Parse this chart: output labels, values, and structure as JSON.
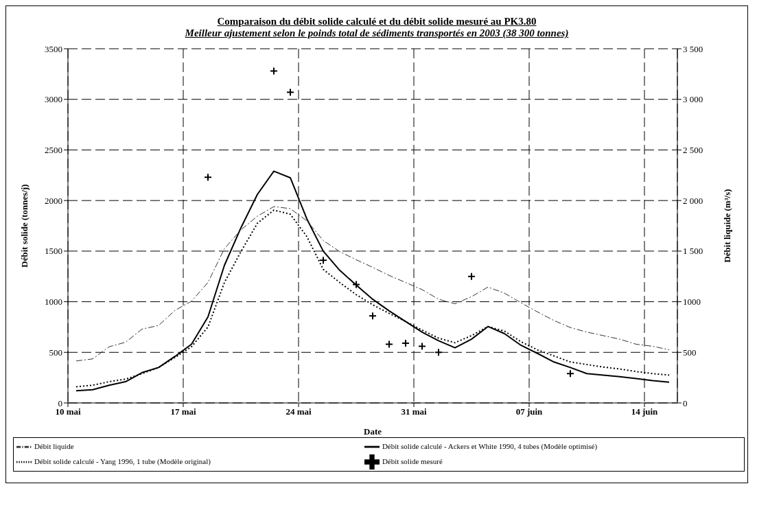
{
  "chart_data": {
    "type": "line",
    "title": "Comparaison du débit solide calculé et du débit solide mesuré au PK3.80",
    "subtitle": "Meilleur ajustement selon le poinds total de sédiments transportés en 2003 (38 300 tonnes)",
    "xlabel": "Date",
    "ylabel": "Débit solide (tonnes/j)",
    "y2label": "Débit liquide (m³/s)",
    "x": [
      "2003-05-10T12:00",
      "2003-05-11T12:00",
      "2003-05-12T12:00",
      "2003-05-13T12:00",
      "2003-05-14T12:00",
      "2003-05-15T12:00",
      "2003-05-16T12:00",
      "2003-05-17T12:00",
      "2003-05-18T12:00",
      "2003-05-19T12:00",
      "2003-05-20T12:00",
      "2003-05-21T12:00",
      "2003-05-22T12:00",
      "2003-05-23T12:00",
      "2003-05-24T12:00",
      "2003-05-25T12:00",
      "2003-05-26T12:00",
      "2003-05-27T12:00",
      "2003-05-28T12:00",
      "2003-05-29T12:00",
      "2003-05-30T12:00",
      "2003-05-31T12:00",
      "2003-06-01T12:00",
      "2003-06-02T12:00",
      "2003-06-03T12:00",
      "2003-06-04T12:00",
      "2003-06-05T12:00",
      "2003-06-06T12:00",
      "2003-06-07T12:00",
      "2003-06-08T12:00",
      "2003-06-09T12:00",
      "2003-06-10T12:00",
      "2003-06-11T12:00",
      "2003-06-12T12:00",
      "2003-06-13T12:00",
      "2003-06-14T12:00",
      "2003-06-15T12:00"
    ],
    "series": [
      {
        "name": "Débit solide mesuré",
        "type": "scatter",
        "marker": "cross",
        "color": "#000000",
        "x": [
          "2003-05-18T12:00",
          "2003-05-22T12:00",
          "2003-05-23T12:00",
          "2003-05-25T12:00",
          "2003-05-27T12:00",
          "2003-05-28T12:00",
          "2003-05-29T12:00",
          "2003-05-30T12:00",
          "2003-05-31T12:00",
          "2003-06-01T12:00",
          "2003-06-03T12:00",
          "2003-06-09T12:00"
        ],
        "values": [
          2230,
          3280,
          3070,
          1410,
          1170,
          860,
          580,
          590,
          560,
          500,
          1250,
          290
        ]
      },
      {
        "name": "Débit solide calculé - Ackers et White 1990, 4 tubes (Modèle optimisé)",
        "line_style": "solid",
        "color": "#000000",
        "values": [
          120,
          130,
          175,
          210,
          300,
          350,
          460,
          580,
          850,
          1360,
          1730,
          2060,
          2290,
          2225,
          1820,
          1500,
          1310,
          1165,
          1025,
          910,
          805,
          700,
          615,
          545,
          630,
          755,
          685,
          570,
          490,
          405,
          350,
          290,
          275,
          260,
          240,
          220,
          205
        ]
      },
      {
        "name": "Débit solide calculé - Yang 1996, 1 tube (Modèle original)",
        "line_style": "dotted",
        "color": "#000000",
        "values": [
          160,
          175,
          210,
          235,
          290,
          350,
          450,
          555,
          750,
          1190,
          1495,
          1775,
          1905,
          1865,
          1645,
          1320,
          1190,
          1070,
          970,
          885,
          805,
          720,
          640,
          595,
          665,
          755,
          710,
          605,
          525,
          465,
          405,
          380,
          355,
          335,
          310,
          290,
          275
        ]
      },
      {
        "name": "Débit liquide",
        "line_style": "dashed",
        "axis": "y2",
        "color": "#333333",
        "values": [
          415,
          435,
          555,
          600,
          730,
          765,
          915,
          1005,
          1190,
          1525,
          1710,
          1845,
          1940,
          1920,
          1800,
          1605,
          1495,
          1415,
          1340,
          1260,
          1190,
          1120,
          1025,
          980,
          1050,
          1145,
          1085,
          990,
          900,
          815,
          745,
          700,
          665,
          630,
          580,
          560,
          525
        ]
      }
    ],
    "xlim": [
      "2003-05-10",
      "2003-06-16"
    ],
    "xticks": [
      {
        "value": "2003-05-10",
        "label": "10 mai"
      },
      {
        "value": "2003-05-17",
        "label": "17 mai"
      },
      {
        "value": "2003-05-24",
        "label": "24 mai"
      },
      {
        "value": "2003-05-31",
        "label": "31 mai"
      },
      {
        "value": "2003-06-07",
        "label": "07 juin"
      },
      {
        "value": "2003-06-14",
        "label": "14 juin"
      }
    ],
    "ylim": [
      0,
      3500
    ],
    "yticks": [
      0,
      500,
      1000,
      1500,
      2000,
      2500,
      3000,
      3500
    ],
    "y2lim": [
      0,
      3500
    ],
    "y2ticks": [
      0,
      500,
      1000,
      {
        "value": 1500,
        "label": "1 500"
      },
      {
        "value": 2000,
        "label": "2 000"
      },
      {
        "value": 2500,
        "label": "2 500"
      },
      {
        "value": 3000,
        "label": "3 000"
      },
      {
        "value": 3500,
        "label": "3 500"
      }
    ],
    "grid": true,
    "legend": "bottom",
    "marker": "none"
  }
}
